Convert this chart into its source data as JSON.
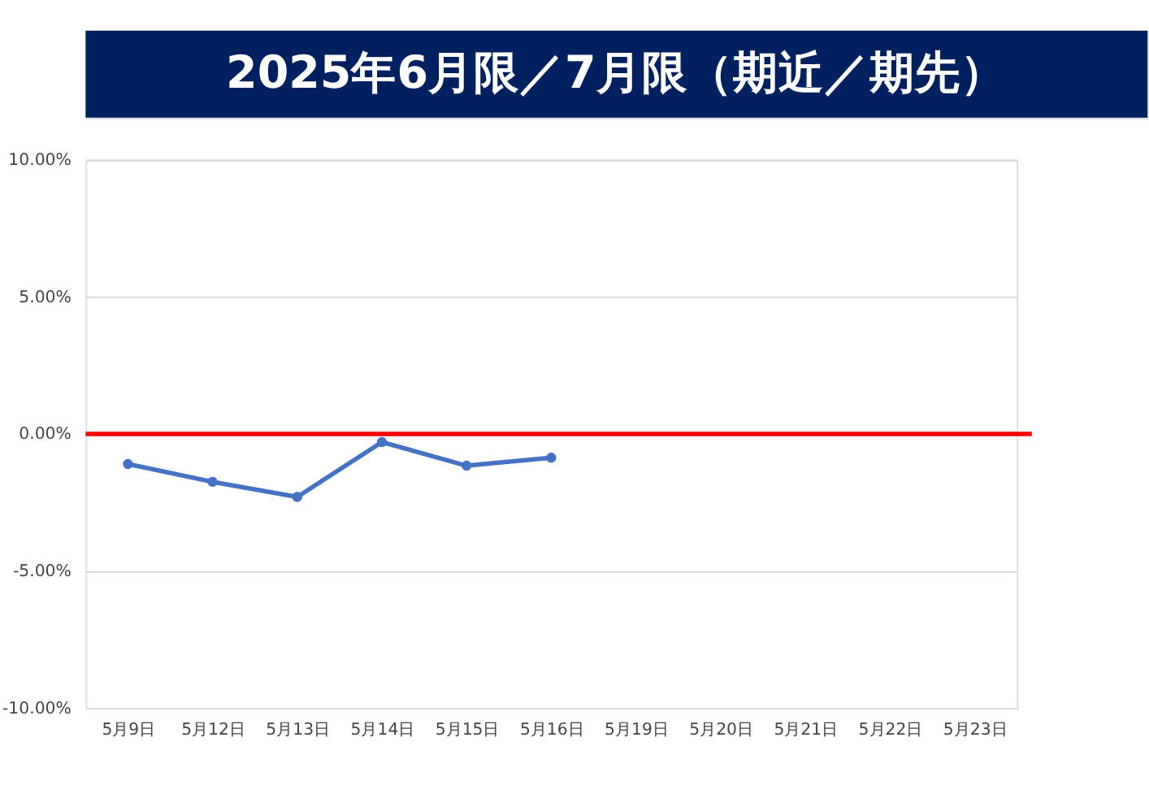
{
  "chart_data": {
    "type": "line",
    "title": "2025年6月限／7月限（期近／期先）",
    "categories": [
      "5月9日",
      "5月12日",
      "5月13日",
      "5月14日",
      "5月15日",
      "5月16日",
      "5月19日",
      "5月20日",
      "5月21日",
      "5月22日",
      "5月23日"
    ],
    "series": [
      {
        "color": "#4472c4",
        "values": [
          -1.1,
          -1.75,
          -2.3,
          -0.3,
          -1.16,
          -0.87,
          null,
          null,
          null,
          null,
          null
        ]
      }
    ],
    "ylim": [
      -10,
      10
    ],
    "yticks": [
      {
        "value": -10,
        "label": "-10.00%"
      },
      {
        "value": -5,
        "label": "-5.00%"
      },
      {
        "value": 0,
        "label": "0.00%"
      },
      {
        "value": 5,
        "label": "5.00%"
      },
      {
        "value": 10,
        "label": "10.00%"
      }
    ],
    "ref_lines": [
      {
        "axis": "y",
        "value": 0,
        "color": "#ff0000"
      }
    ],
    "grid": "y",
    "marker": "circle",
    "line_style": "solid"
  }
}
